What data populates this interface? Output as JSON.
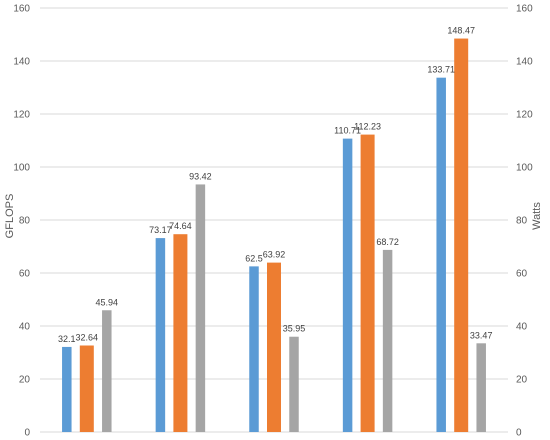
{
  "chart_data": {
    "type": "bar",
    "title": "",
    "xlabel": "",
    "ylabel": "GFLOPS",
    "y2label": "Watts",
    "ylim": [
      0,
      160
    ],
    "y2lim": [
      0,
      160
    ],
    "yticks": [
      0,
      20,
      40,
      60,
      80,
      100,
      120,
      140,
      160
    ],
    "y2ticks": [
      0,
      20,
      40,
      60,
      80,
      100,
      120,
      140,
      160
    ],
    "grid": true,
    "legend": "none",
    "categories": [
      "",
      "",
      "",
      "",
      ""
    ],
    "series": [
      {
        "color": "#5b9bd5",
        "axis": "left",
        "values": [
          32.1,
          73.17,
          62.5,
          110.71,
          133.71
        ]
      },
      {
        "color": "#ed7d31",
        "axis": "left",
        "values": [
          32.64,
          74.64,
          63.92,
          112.23,
          148.47
        ]
      },
      {
        "color": "#a5a5a5",
        "axis": "right",
        "values": [
          45.94,
          93.42,
          35.95,
          68.72,
          33.47
        ]
      }
    ]
  }
}
